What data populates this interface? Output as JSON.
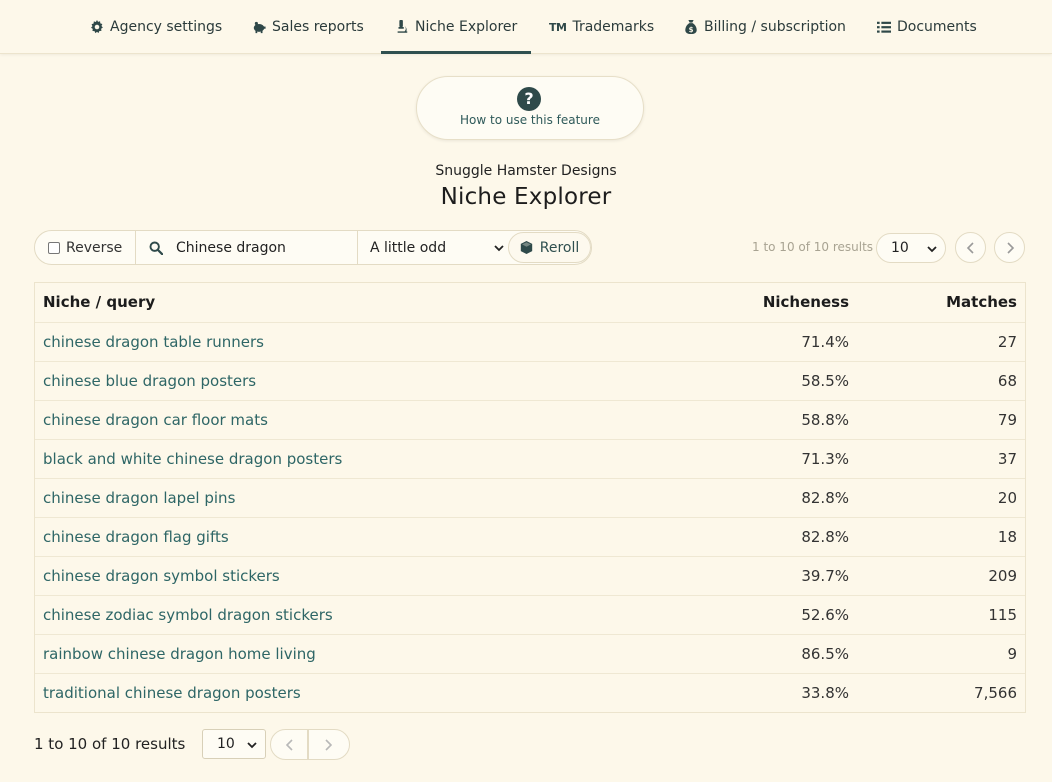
{
  "nav": {
    "tabs": [
      {
        "label": "Agency settings",
        "icon": "gear-icon"
      },
      {
        "label": "Sales reports",
        "icon": "piggy-bank-icon"
      },
      {
        "label": "Niche Explorer",
        "icon": "microscope-icon",
        "active": true
      },
      {
        "label": "Trademarks",
        "icon": "tm-icon",
        "glyph": "TM"
      },
      {
        "label": "Billing / subscription",
        "icon": "money-bag-icon"
      },
      {
        "label": "Documents",
        "icon": "list-icon"
      }
    ]
  },
  "help": {
    "label": "How to use this feature",
    "icon_glyph": "?"
  },
  "header": {
    "subtitle": "Snuggle Hamster Designs",
    "title": "Niche Explorer"
  },
  "toolbar": {
    "reverse_label": "Reverse",
    "reverse_checked": false,
    "search_value": "Chinese dragon",
    "oddness_selected": "A little odd",
    "reroll_label": "Reroll"
  },
  "pagination": {
    "summary": "1 to 10 of 10 results",
    "page_size": "10"
  },
  "table": {
    "headers": {
      "niche": "Niche / query",
      "nicheness": "Nicheness",
      "matches": "Matches"
    },
    "rows": [
      {
        "niche": "chinese dragon table runners",
        "nicheness": "71.4%",
        "matches": "27"
      },
      {
        "niche": "chinese blue dragon posters",
        "nicheness": "58.5%",
        "matches": "68"
      },
      {
        "niche": "chinese dragon car floor mats",
        "nicheness": "58.8%",
        "matches": "79"
      },
      {
        "niche": "black and white chinese dragon posters",
        "nicheness": "71.3%",
        "matches": "37"
      },
      {
        "niche": "chinese dragon lapel pins",
        "nicheness": "82.8%",
        "matches": "20"
      },
      {
        "niche": "chinese dragon flag gifts",
        "nicheness": "82.8%",
        "matches": "18"
      },
      {
        "niche": "chinese dragon symbol stickers",
        "nicheness": "39.7%",
        "matches": "209"
      },
      {
        "niche": "chinese zodiac symbol dragon stickers",
        "nicheness": "52.6%",
        "matches": "115"
      },
      {
        "niche": "rainbow chinese dragon home living",
        "nicheness": "86.5%",
        "matches": "9"
      },
      {
        "niche": "traditional chinese dragon posters",
        "nicheness": "33.8%",
        "matches": "7,566"
      }
    ]
  },
  "colors": {
    "background": "#fdf8ea",
    "accent": "#2f5050",
    "link": "#2e6666"
  }
}
